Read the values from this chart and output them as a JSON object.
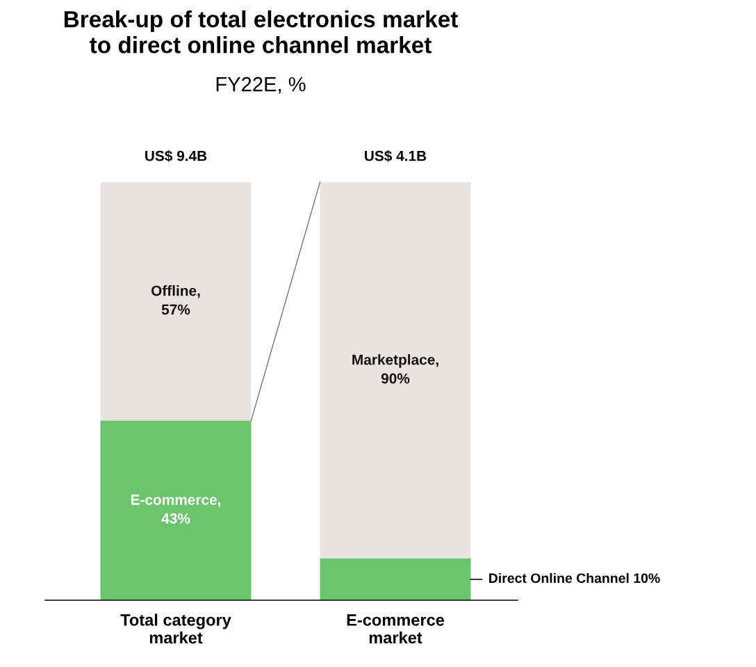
{
  "chart_data": {
    "type": "bar",
    "stacked": true,
    "title": "Break-up of total electronics market\nto direct online channel market",
    "subtitle": "FY22E, %",
    "categories": [
      "Total category\nmarket",
      "E-commerce\nmarket"
    ],
    "series": [
      {
        "color": "#6cc46f",
        "values": [
          43,
          10
        ],
        "value_labels": [
          "E-commerce,\n43%",
          "Direct Online Channel 10%"
        ]
      },
      {
        "color": "#e8e5e1",
        "values": [
          57,
          90
        ],
        "value_labels": [
          "Offline,\n57%",
          "Marketplace,\n90%"
        ]
      }
    ],
    "totals": [
      "US$ 9.4B",
      "US$ 4.1B"
    ],
    "grid": false,
    "legend": false
  }
}
